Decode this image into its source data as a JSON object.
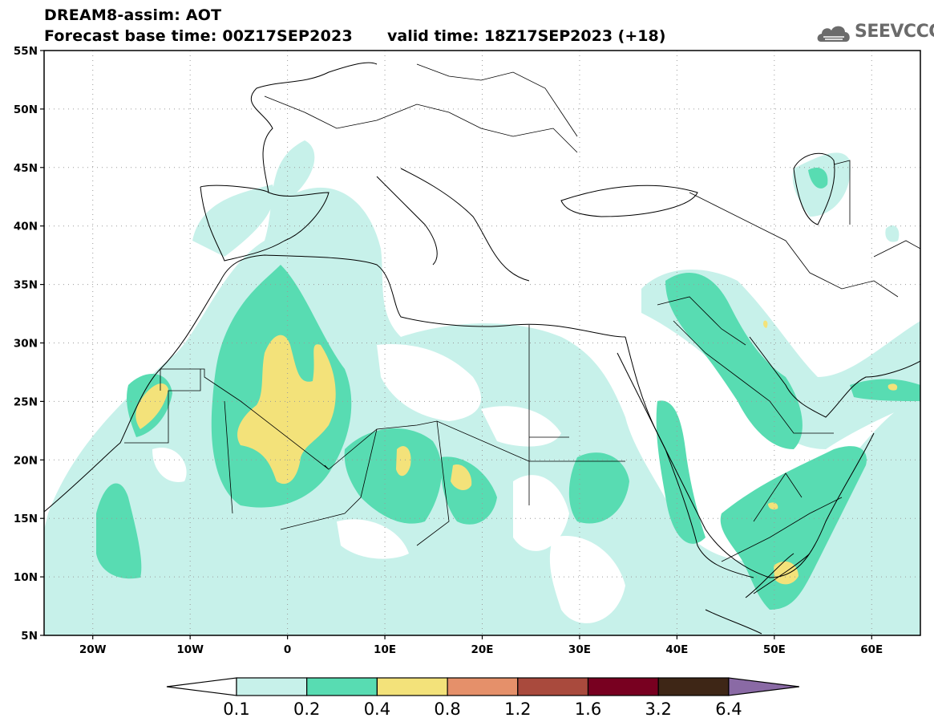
{
  "title": {
    "line1": "DREAM8-assim: AOT",
    "base_time": "Forecast base time: 00Z17SEP2023",
    "valid_time": "valid time: 18Z17SEP2023 (+18)"
  },
  "logo": {
    "text": "SEEVCCC",
    "icon": "cloud-logo-icon"
  },
  "map": {
    "lon_range": [
      -25,
      65
    ],
    "lat_range": [
      5,
      55
    ],
    "lat_ticks": [
      {
        "value": 55,
        "label": "55N"
      },
      {
        "value": 50,
        "label": "50N"
      },
      {
        "value": 45,
        "label": "45N"
      },
      {
        "value": 40,
        "label": "40N"
      },
      {
        "value": 35,
        "label": "35N"
      },
      {
        "value": 30,
        "label": "30N"
      },
      {
        "value": 25,
        "label": "25N"
      },
      {
        "value": 20,
        "label": "20N"
      },
      {
        "value": 15,
        "label": "15N"
      },
      {
        "value": 10,
        "label": "10N"
      },
      {
        "value": 5,
        "label": "5N"
      }
    ],
    "lon_ticks": [
      {
        "value": -20,
        "label": "20W"
      },
      {
        "value": -10,
        "label": "10W"
      },
      {
        "value": 0,
        "label": "0"
      },
      {
        "value": 10,
        "label": "10E"
      },
      {
        "value": 20,
        "label": "20E"
      },
      {
        "value": 30,
        "label": "30E"
      },
      {
        "value": 40,
        "label": "40E"
      },
      {
        "value": 50,
        "label": "50E"
      },
      {
        "value": 60,
        "label": "60E"
      }
    ],
    "grid": true
  },
  "colorbar": {
    "levels": [
      "0.1",
      "0.2",
      "0.4",
      "0.8",
      "1.2",
      "1.6",
      "3.2",
      "6.4"
    ],
    "under_color": "#ffffff",
    "colors": [
      "#c7f1ea",
      "#58dcb2",
      "#f3e27a",
      "#e5906a",
      "#a94a3d",
      "#780020",
      "#3e2616"
    ],
    "over_color": "#8a6aa5"
  }
}
